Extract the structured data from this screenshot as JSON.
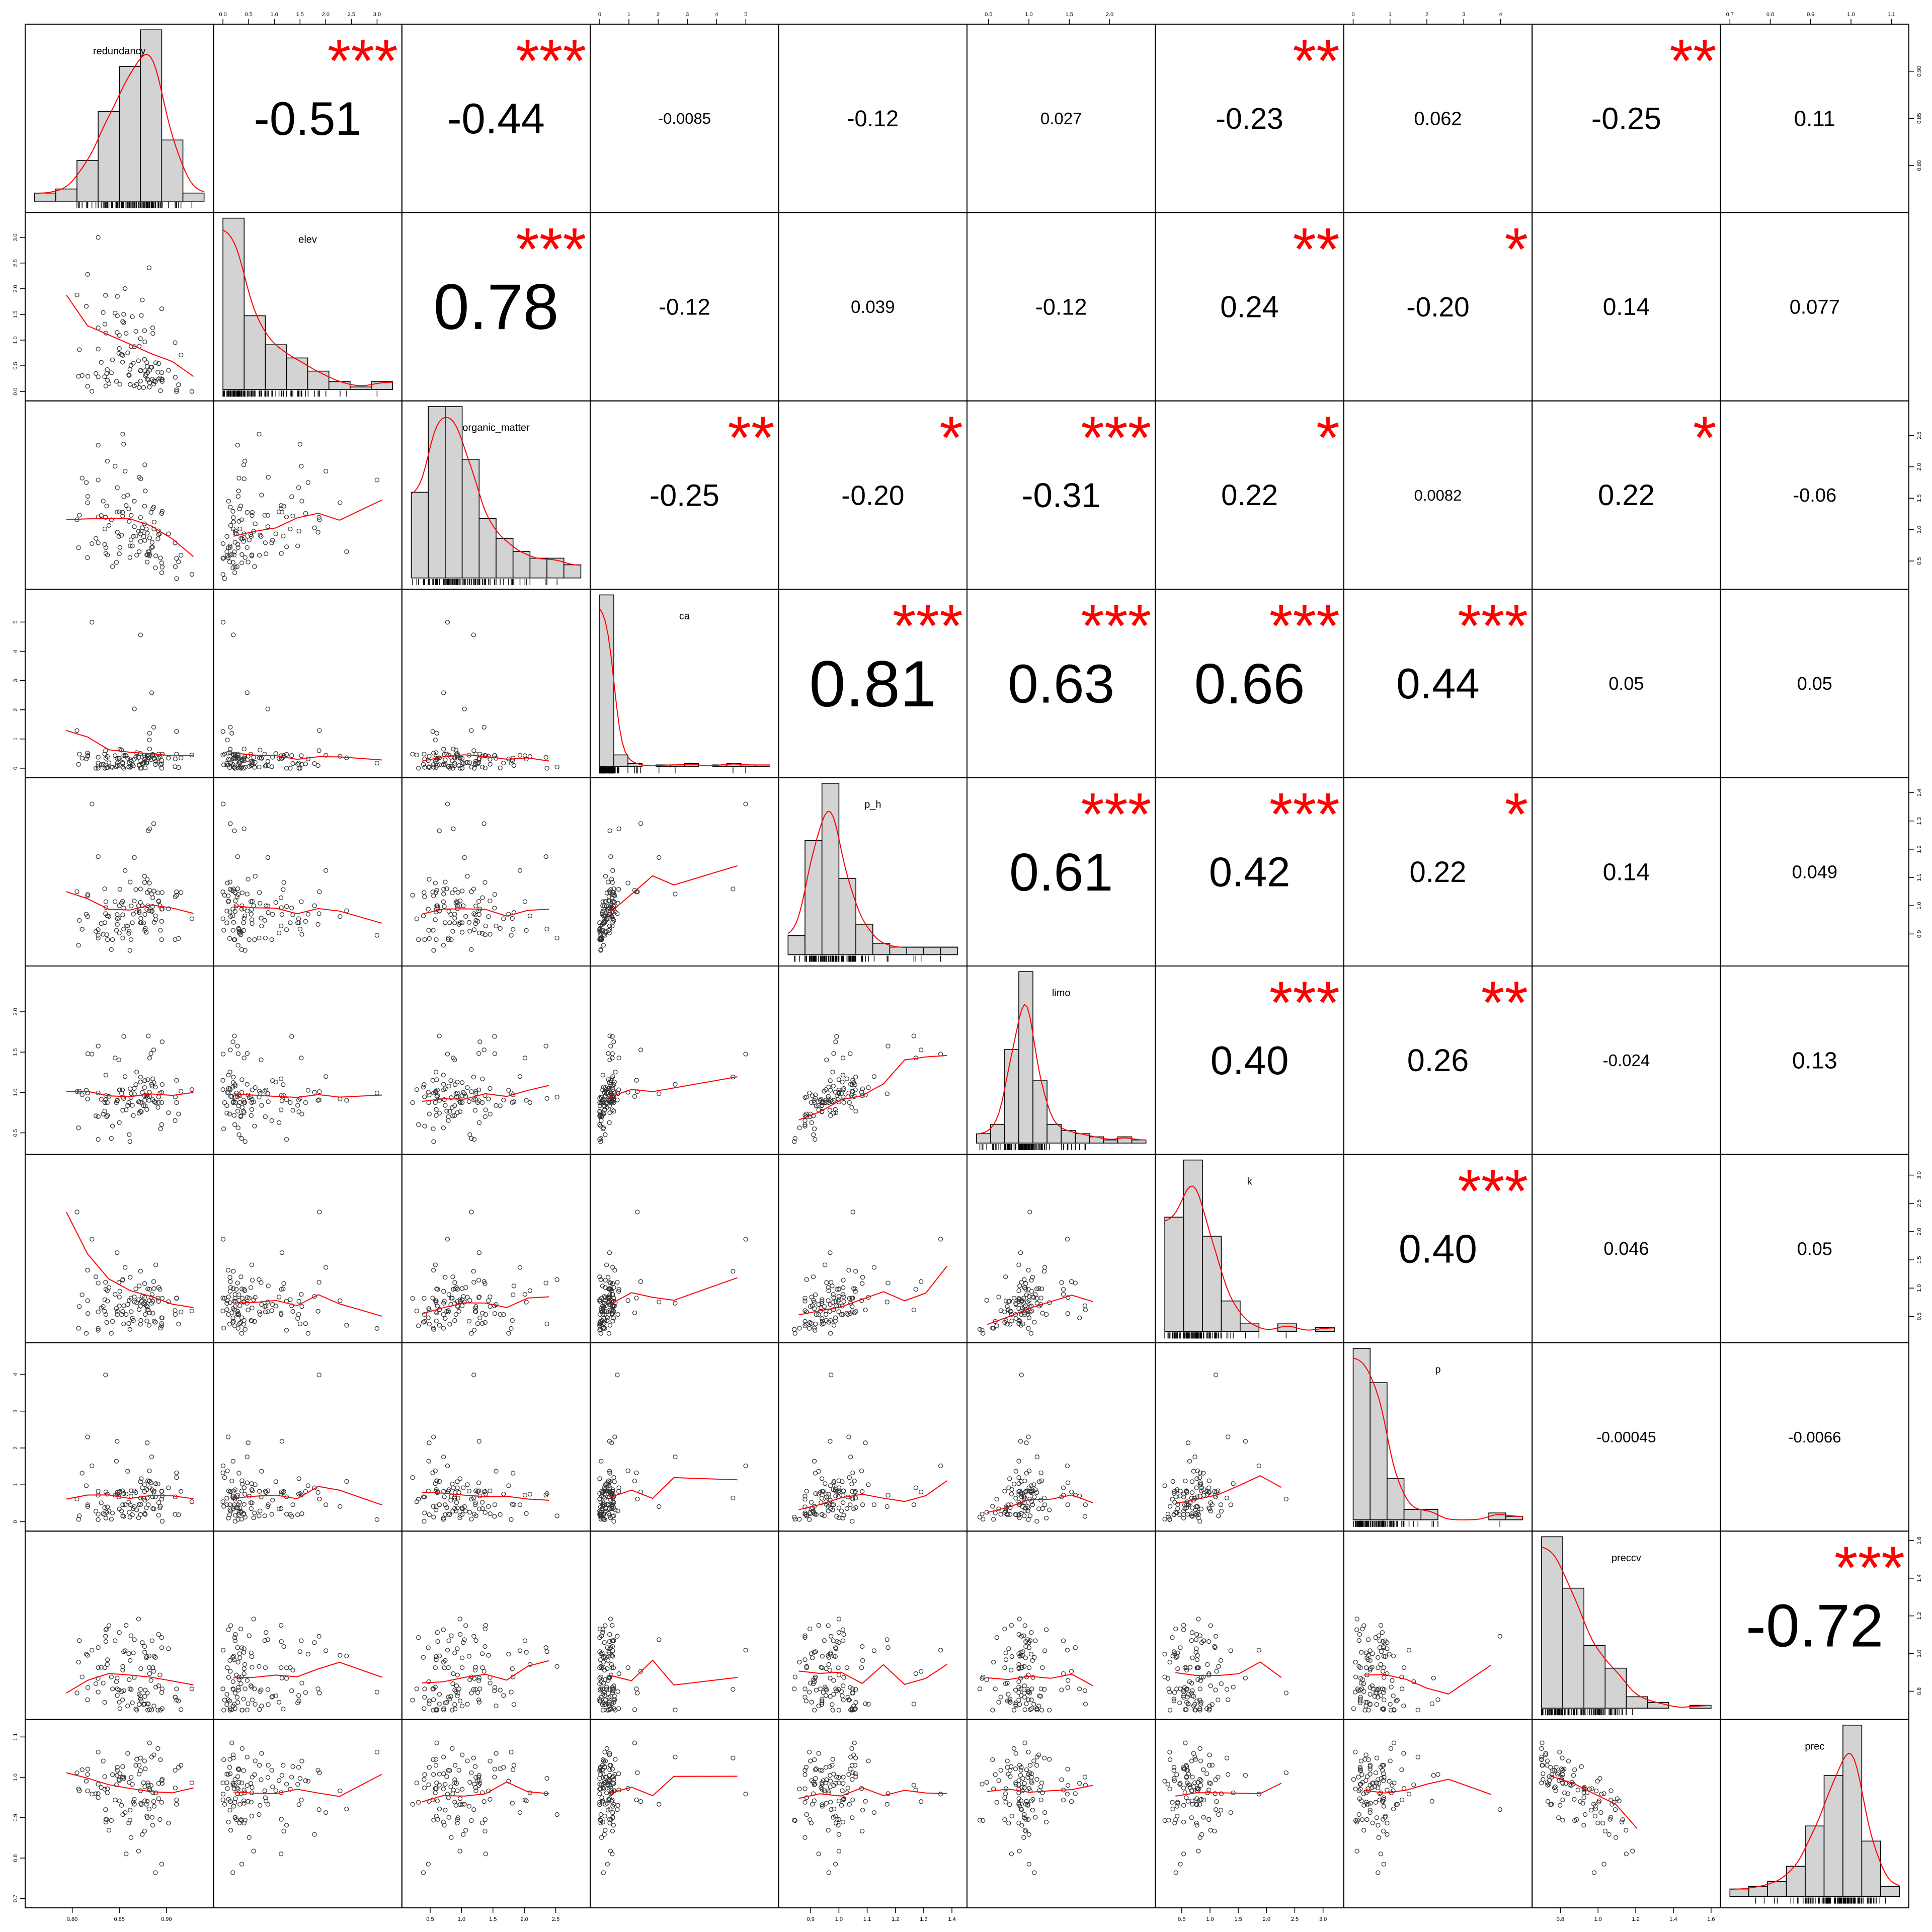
{
  "chart_data": {
    "type": "scatter-matrix",
    "variables": [
      "redundancy",
      "elev",
      "organic_matter",
      "ca",
      "p_h",
      "limo",
      "k",
      "p",
      "preccv",
      "prec"
    ],
    "axis_ranges": [
      [
        0.76,
        0.94
      ],
      [
        0.0,
        3.3
      ],
      [
        0.2,
        2.9
      ],
      [
        0.0,
        5.8
      ],
      [
        0.82,
        1.42
      ],
      [
        0.35,
        2.45
      ],
      [
        0.2,
        3.2
      ],
      [
        0.0,
        4.6
      ],
      [
        0.7,
        1.6
      ],
      [
        0.7,
        1.12
      ]
    ],
    "top_ticks": {
      "1": [
        "0.0",
        "0.5",
        "1.0",
        "1.5",
        "2.0",
        "2.5",
        "3.0"
      ],
      "3": [
        "0",
        "1",
        "2",
        "3",
        "4",
        "5"
      ],
      "5": [
        "0.5",
        "1.0",
        "1.5",
        "2.0"
      ],
      "7": [
        "0",
        "1",
        "2",
        "3",
        "4"
      ],
      "9": [
        "0.7",
        "0.8",
        "0.9",
        "1.0",
        "1.1"
      ]
    },
    "bottom_ticks": {
      "0": [
        "0.80",
        "0.85",
        "0.90"
      ],
      "2": [
        "0.5",
        "1.0",
        "1.5",
        "2.0",
        "2.5"
      ],
      "4": [
        "0.9",
        "1.0",
        "1.1",
        "1.2",
        "1.3",
        "1.4"
      ],
      "6": [
        "0.5",
        "1.0",
        "1.5",
        "2.0",
        "2.5",
        "3.0"
      ],
      "8": [
        "0.8",
        "1.0",
        "1.2",
        "1.4",
        "1.6"
      ]
    },
    "left_ticks": {
      "1": [
        "0.0",
        "0.5",
        "1.0",
        "1.5",
        "2.0",
        "2.5",
        "3.0"
      ],
      "3": [
        "0",
        "1",
        "2",
        "3",
        "4",
        "5"
      ],
      "5": [
        "0.5",
        "1.0",
        "1.5",
        "2.0"
      ],
      "7": [
        "0",
        "1",
        "2",
        "3",
        "4"
      ],
      "9": [
        "0.7",
        "0.8",
        "0.9",
        "1.0",
        "1.1"
      ]
    },
    "right_ticks": {
      "0": [
        "0.80",
        "0.85",
        "0.90"
      ],
      "2": [
        "0.5",
        "1.0",
        "1.5",
        "2.0",
        "2.5"
      ],
      "4": [
        "0.9",
        "1.0",
        "1.1",
        "1.2",
        "1.3",
        "1.4"
      ],
      "6": [
        "0.5",
        "1.0",
        "1.5",
        "2.0",
        "2.5",
        "3.0"
      ],
      "8": [
        "0.8",
        "1.0",
        "1.2",
        "1.4",
        "1.6"
      ]
    },
    "histograms": [
      [
        2,
        3,
        10,
        22,
        33,
        42,
        15,
        2
      ],
      [
        65,
        28,
        17,
        12,
        7,
        3,
        1,
        3
      ],
      [
        13,
        26,
        26,
        18,
        9,
        6,
        4,
        3,
        3,
        2
      ],
      [
        120,
        8,
        2,
        0,
        1,
        1,
        2,
        0,
        1,
        2,
        1,
        1
      ],
      [
        5,
        30,
        45,
        20,
        8,
        3,
        2,
        2,
        2,
        2
      ],
      [
        3,
        6,
        30,
        55,
        20,
        6,
        4,
        3,
        2,
        1,
        2,
        1
      ],
      [
        30,
        45,
        25,
        8,
        2,
        0,
        2,
        0,
        1
      ],
      [
        50,
        40,
        12,
        3,
        3,
        0,
        0,
        0,
        2,
        1
      ],
      [
        60,
        42,
        22,
        14,
        4,
        2,
        0,
        1
      ],
      [
        3,
        4,
        6,
        12,
        28,
        48,
        68,
        22,
        4
      ]
    ],
    "correlations": [
      {
        "row": 0,
        "col": 1,
        "value": "-0.51",
        "stars": "***"
      },
      {
        "row": 0,
        "col": 2,
        "value": "-0.44",
        "stars": "***"
      },
      {
        "row": 0,
        "col": 3,
        "value": "-0.0085",
        "stars": ""
      },
      {
        "row": 0,
        "col": 4,
        "value": "-0.12",
        "stars": ""
      },
      {
        "row": 0,
        "col": 5,
        "value": "0.027",
        "stars": ""
      },
      {
        "row": 0,
        "col": 6,
        "value": "-0.23",
        "stars": "**"
      },
      {
        "row": 0,
        "col": 7,
        "value": "0.062",
        "stars": ""
      },
      {
        "row": 0,
        "col": 8,
        "value": "-0.25",
        "stars": "**"
      },
      {
        "row": 0,
        "col": 9,
        "value": "0.11",
        "stars": ""
      },
      {
        "row": 1,
        "col": 2,
        "value": "0.78",
        "stars": "***"
      },
      {
        "row": 1,
        "col": 3,
        "value": "-0.12",
        "stars": ""
      },
      {
        "row": 1,
        "col": 4,
        "value": "0.039",
        "stars": ""
      },
      {
        "row": 1,
        "col": 5,
        "value": "-0.12",
        "stars": ""
      },
      {
        "row": 1,
        "col": 6,
        "value": "0.24",
        "stars": "**"
      },
      {
        "row": 1,
        "col": 7,
        "value": "-0.20",
        "stars": "*"
      },
      {
        "row": 1,
        "col": 8,
        "value": "0.14",
        "stars": ""
      },
      {
        "row": 1,
        "col": 9,
        "value": "0.077",
        "stars": ""
      },
      {
        "row": 2,
        "col": 3,
        "value": "-0.25",
        "stars": "**"
      },
      {
        "row": 2,
        "col": 4,
        "value": "-0.20",
        "stars": "*"
      },
      {
        "row": 2,
        "col": 5,
        "value": "-0.31",
        "stars": "***"
      },
      {
        "row": 2,
        "col": 6,
        "value": "0.22",
        "stars": "*"
      },
      {
        "row": 2,
        "col": 7,
        "value": "0.0082",
        "stars": ""
      },
      {
        "row": 2,
        "col": 8,
        "value": "0.22",
        "stars": "*"
      },
      {
        "row": 2,
        "col": 9,
        "value": "-0.06",
        "stars": ""
      },
      {
        "row": 3,
        "col": 4,
        "value": "0.81",
        "stars": "***"
      },
      {
        "row": 3,
        "col": 5,
        "value": "0.63",
        "stars": "***"
      },
      {
        "row": 3,
        "col": 6,
        "value": "0.66",
        "stars": "***"
      },
      {
        "row": 3,
        "col": 7,
        "value": "0.44",
        "stars": "***"
      },
      {
        "row": 3,
        "col": 8,
        "value": "0.05",
        "stars": ""
      },
      {
        "row": 3,
        "col": 9,
        "value": "0.05",
        "stars": ""
      },
      {
        "row": 4,
        "col": 5,
        "value": "0.61",
        "stars": "***"
      },
      {
        "row": 4,
        "col": 6,
        "value": "0.42",
        "stars": "***"
      },
      {
        "row": 4,
        "col": 7,
        "value": "0.22",
        "stars": "*"
      },
      {
        "row": 4,
        "col": 8,
        "value": "0.14",
        "stars": ""
      },
      {
        "row": 4,
        "col": 9,
        "value": "0.049",
        "stars": ""
      },
      {
        "row": 5,
        "col": 6,
        "value": "0.40",
        "stars": "***"
      },
      {
        "row": 5,
        "col": 7,
        "value": "0.26",
        "stars": "**"
      },
      {
        "row": 5,
        "col": 8,
        "value": "-0.024",
        "stars": ""
      },
      {
        "row": 5,
        "col": 9,
        "value": "0.13",
        "stars": ""
      },
      {
        "row": 6,
        "col": 7,
        "value": "0.40",
        "stars": "***"
      },
      {
        "row": 6,
        "col": 8,
        "value": "0.046",
        "stars": ""
      },
      {
        "row": 6,
        "col": 9,
        "value": "0.05",
        "stars": ""
      },
      {
        "row": 7,
        "col": 8,
        "value": "-0.00045",
        "stars": ""
      },
      {
        "row": 7,
        "col": 9,
        "value": "-0.0066",
        "stars": ""
      },
      {
        "row": 8,
        "col": 9,
        "value": "-0.72",
        "stars": "***"
      }
    ],
    "colors": {
      "panel_border": "#000000",
      "histogram_fill": "#d3d3d3",
      "smoother": "#ff0000",
      "stars": "#ff0000",
      "points": "#333333"
    }
  }
}
